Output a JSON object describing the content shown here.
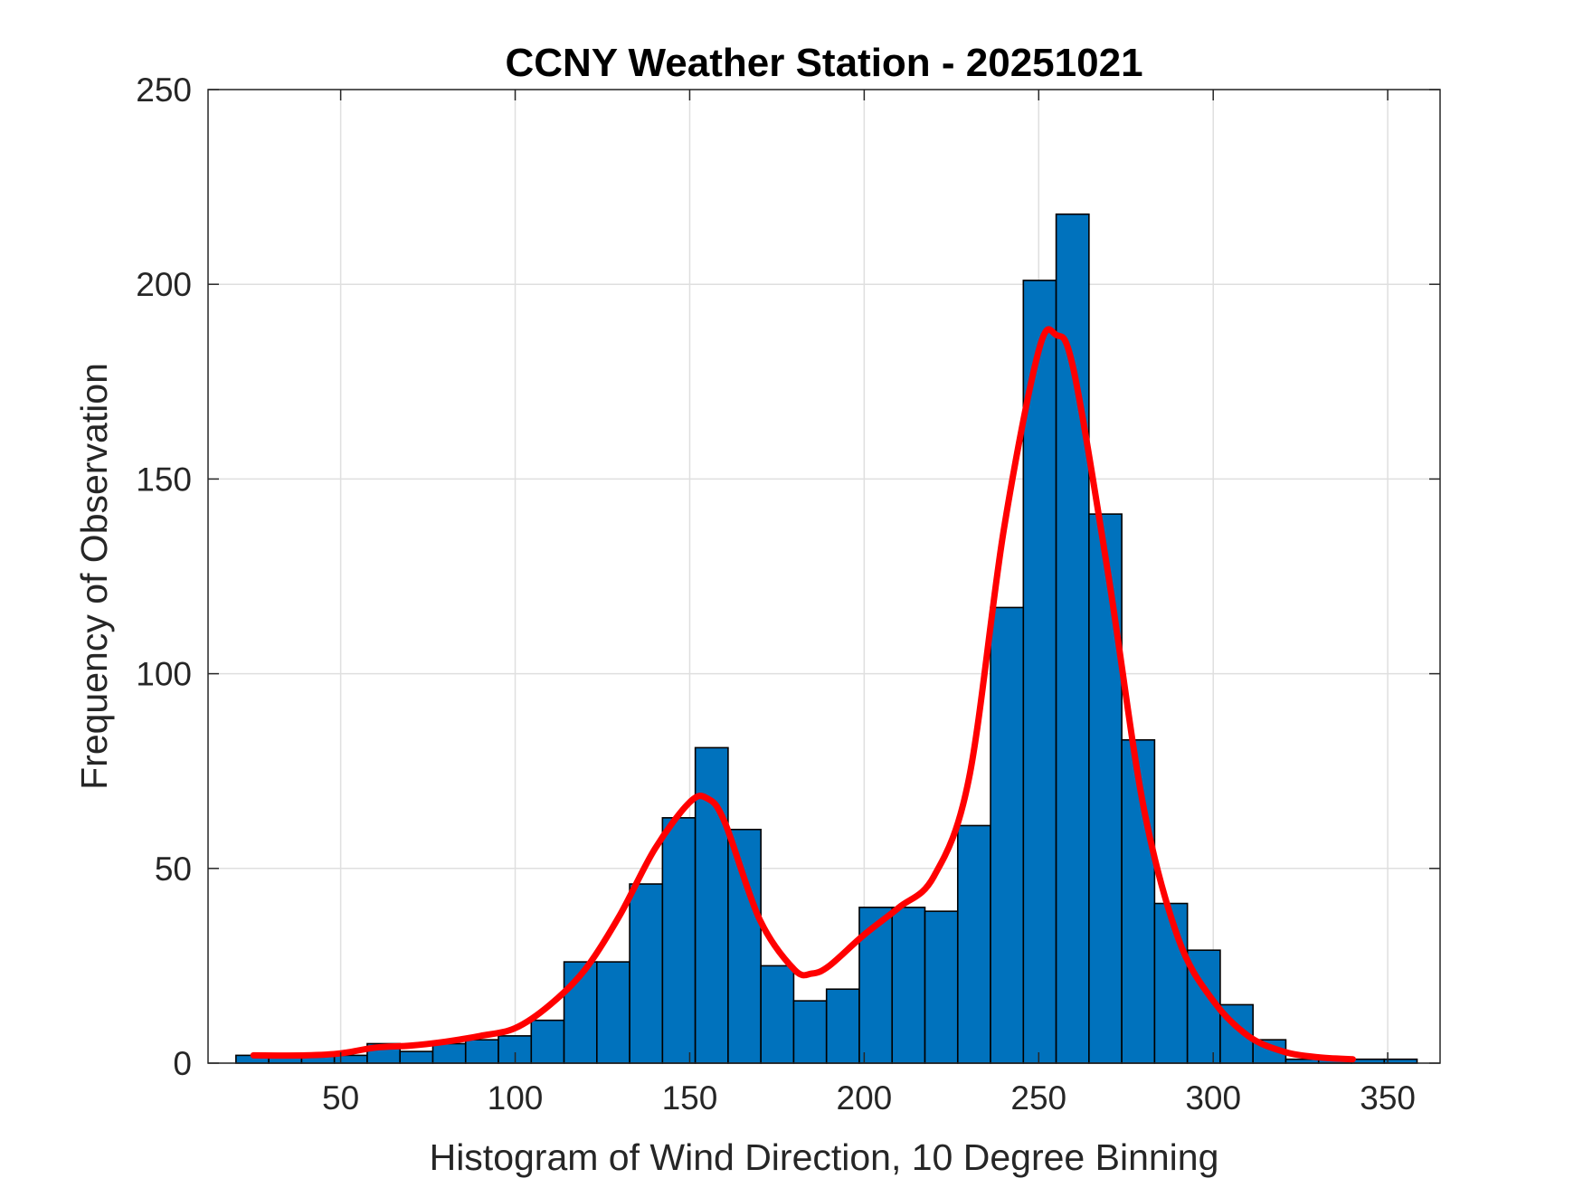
{
  "chart_data": {
    "type": "bar",
    "subtype": "histogram",
    "title": "CCNY Weather Station - 20251021",
    "xlabel": "Histogram of Wind Direction, 10 Degree Binning",
    "ylabel": "Frequency of Observation",
    "xlim": [
      12,
      365
    ],
    "ylim": [
      0,
      250
    ],
    "x_ticks": [
      50,
      100,
      150,
      200,
      250,
      300,
      350
    ],
    "y_ticks": [
      0,
      50,
      100,
      150,
      200,
      250
    ],
    "grid": true,
    "bin_width": 9.4,
    "bin_start": 20,
    "bins": [
      {
        "left": 20.0,
        "value": 2
      },
      {
        "left": 29.4,
        "value": 2
      },
      {
        "left": 38.8,
        "value": 2
      },
      {
        "left": 48.2,
        "value": 2
      },
      {
        "left": 57.6,
        "value": 5
      },
      {
        "left": 67.0,
        "value": 3
      },
      {
        "left": 76.4,
        "value": 5
      },
      {
        "left": 85.8,
        "value": 6
      },
      {
        "left": 95.2,
        "value": 7
      },
      {
        "left": 104.6,
        "value": 11
      },
      {
        "left": 114.0,
        "value": 26
      },
      {
        "left": 123.4,
        "value": 26
      },
      {
        "left": 132.8,
        "value": 46
      },
      {
        "left": 142.2,
        "value": 63
      },
      {
        "left": 151.6,
        "value": 81
      },
      {
        "left": 161.0,
        "value": 60
      },
      {
        "left": 170.4,
        "value": 25
      },
      {
        "left": 179.8,
        "value": 16
      },
      {
        "left": 189.2,
        "value": 19
      },
      {
        "left": 198.6,
        "value": 40
      },
      {
        "left": 208.0,
        "value": 40
      },
      {
        "left": 217.4,
        "value": 39
      },
      {
        "left": 226.8,
        "value": 61
      },
      {
        "left": 236.2,
        "value": 117
      },
      {
        "left": 245.6,
        "value": 201
      },
      {
        "left": 255.0,
        "value": 218
      },
      {
        "left": 264.4,
        "value": 141
      },
      {
        "left": 273.8,
        "value": 83
      },
      {
        "left": 283.2,
        "value": 41
      },
      {
        "left": 292.6,
        "value": 29
      },
      {
        "left": 302.0,
        "value": 15
      },
      {
        "left": 311.4,
        "value": 6
      },
      {
        "left": 320.8,
        "value": 1
      },
      {
        "left": 330.2,
        "value": 1
      },
      {
        "left": 339.6,
        "value": 1
      },
      {
        "left": 349.0,
        "value": 1
      }
    ],
    "fit_curve": {
      "name": "density fit",
      "color": "#ff0000",
      "x": [
        25,
        40,
        50,
        60,
        70,
        80,
        90,
        100,
        110,
        120,
        130,
        140,
        150,
        155,
        160,
        170,
        180,
        185,
        190,
        200,
        210,
        220,
        230,
        240,
        250,
        255,
        260,
        270,
        280,
        290,
        300,
        310,
        320,
        330,
        340
      ],
      "y": [
        2,
        2,
        2.5,
        4,
        4.5,
        5.5,
        7,
        9,
        15,
        24,
        38,
        55,
        67,
        68,
        62,
        37,
        24,
        23,
        25,
        33,
        40,
        48,
        73,
        137,
        183,
        187,
        178,
        125,
        66,
        32,
        16,
        7,
        3,
        1.5,
        1
      ]
    },
    "colors": {
      "bar_fill": "#0072bd",
      "bar_edge": "#000000",
      "grid": "#dfdfdf",
      "axis": "#262626"
    }
  }
}
